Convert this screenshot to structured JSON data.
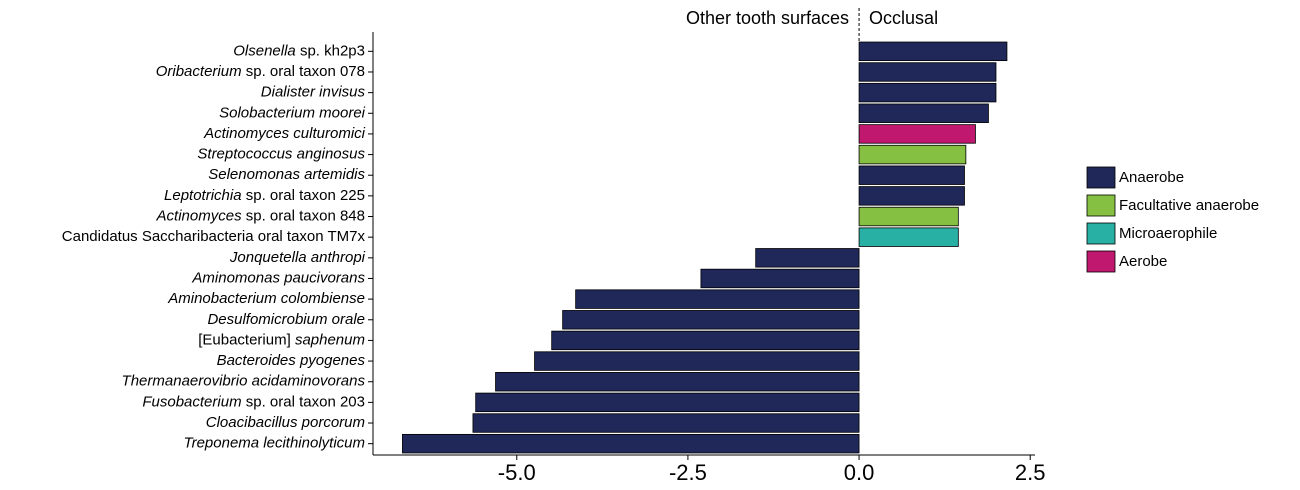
{
  "chart_data": {
    "type": "bar",
    "orientation": "horizontal",
    "annotations": [
      "Other tooth surfaces",
      "Occlusal"
    ],
    "categories": [
      [
        {
          "text": "Olsenella",
          "italic": true
        },
        {
          "text": " sp. kh2p3",
          "italic": false
        }
      ],
      [
        {
          "text": "Oribacterium",
          "italic": true
        },
        {
          "text": " sp. oral taxon 078",
          "italic": false
        }
      ],
      [
        {
          "text": "Dialister invisus",
          "italic": true
        }
      ],
      [
        {
          "text": "Solobacterium moorei",
          "italic": true
        }
      ],
      [
        {
          "text": "Actinomyces culturomici",
          "italic": true
        }
      ],
      [
        {
          "text": "Streptococcus anginosus",
          "italic": true
        }
      ],
      [
        {
          "text": "Selenomonas artemidis",
          "italic": true
        }
      ],
      [
        {
          "text": "Leptotrichia",
          "italic": true
        },
        {
          "text": " sp. oral taxon 225",
          "italic": false
        }
      ],
      [
        {
          "text": "Actinomyces",
          "italic": true
        },
        {
          "text": " sp. oral taxon 848",
          "italic": false
        }
      ],
      [
        {
          "text": "Candidatus Saccharibacteria oral taxon TM7x",
          "italic": false
        }
      ],
      [
        {
          "text": "Jonquetella anthropi",
          "italic": true
        }
      ],
      [
        {
          "text": "Aminomonas paucivorans",
          "italic": true
        }
      ],
      [
        {
          "text": "Aminobacterium colombiense",
          "italic": true
        }
      ],
      [
        {
          "text": "Desulfomicrobium orale",
          "italic": true
        }
      ],
      [
        {
          "text": "[Eubacterium] ",
          "italic": false
        },
        {
          "text": "saphenum",
          "italic": true
        }
      ],
      [
        {
          "text": "Bacteroides pyogenes",
          "italic": true
        }
      ],
      [
        {
          "text": "Thermanaerovibrio acidaminovorans",
          "italic": true
        }
      ],
      [
        {
          "text": "Fusobacterium",
          "italic": true
        },
        {
          "text": " sp. oral taxon 203",
          "italic": false
        }
      ],
      [
        {
          "text": "Cloacibacillus porcorum",
          "italic": true
        }
      ],
      [
        {
          "text": "Treponema lecithinolyticum",
          "italic": true
        }
      ]
    ],
    "series": [
      {
        "name": "Anaerobe",
        "color": "#1f2858",
        "values": [
          2.16,
          2.0,
          2.0,
          1.89,
          null,
          null,
          1.54,
          1.54,
          null,
          null,
          -1.51,
          -2.31,
          -4.14,
          -4.33,
          -4.49,
          -4.74,
          -5.31,
          -5.6,
          -5.64,
          -6.67
        ]
      },
      {
        "name": "Facultative anaerobe",
        "color": "#86c043",
        "values": [
          null,
          null,
          null,
          null,
          null,
          1.56,
          null,
          null,
          1.45,
          null,
          null,
          null,
          null,
          null,
          null,
          null,
          null,
          null,
          null,
          null
        ]
      },
      {
        "name": "Microaerophile",
        "color": "#27b0a3",
        "values": [
          null,
          null,
          null,
          null,
          null,
          null,
          null,
          null,
          null,
          1.45,
          null,
          null,
          null,
          null,
          null,
          null,
          null,
          null,
          null,
          null
        ]
      },
      {
        "name": "Aerobe",
        "color": "#c0186e",
        "values": [
          null,
          null,
          null,
          null,
          1.7,
          null,
          null,
          null,
          null,
          null,
          null,
          null,
          null,
          null,
          null,
          null,
          null,
          null,
          null,
          null
        ]
      }
    ],
    "xlim": [
      -7.1,
      2.57
    ],
    "xticks": [
      {
        "value": -5,
        "label": "-5.0"
      },
      {
        "value": -2.5,
        "label": "-2.5"
      },
      {
        "value": 0,
        "label": "0.0"
      },
      {
        "value": 2.5,
        "label": "2.5"
      }
    ],
    "legend": "right"
  }
}
